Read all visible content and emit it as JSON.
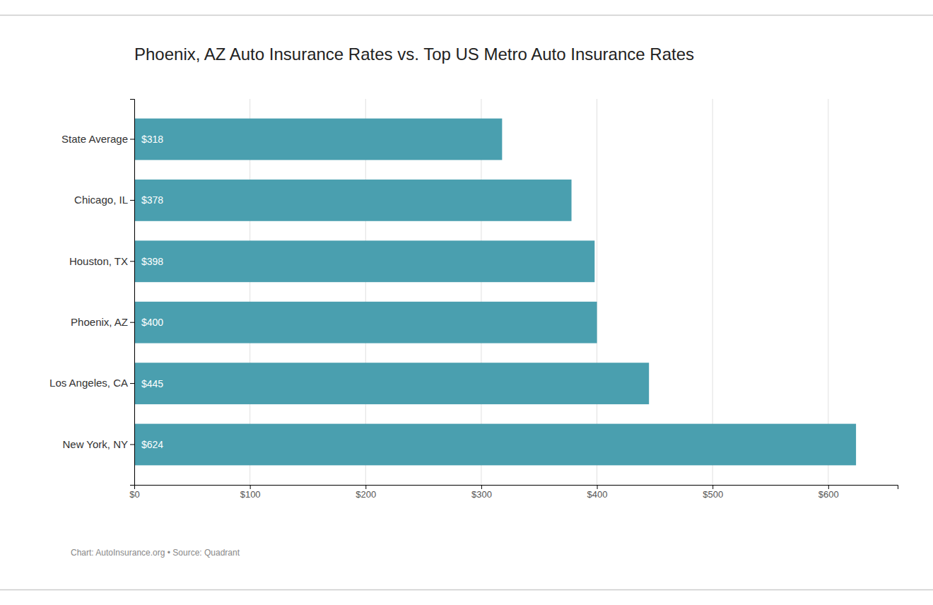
{
  "chart_data": {
    "type": "bar",
    "title": "Phoenix, AZ Auto Insurance Rates vs. Top US Metro Auto Insurance Rates",
    "annotations": [
      "Chart: AutoInsurance.org • Source: Quadrant"
    ],
    "orientation": "horizontal",
    "categories": [
      "State Average",
      "Chicago, IL",
      "Houston, TX",
      "Phoenix, AZ",
      "Los Angeles, CA",
      "New York, NY"
    ],
    "values": [
      318,
      378,
      398,
      400,
      445,
      624
    ],
    "value_labels": [
      "$318",
      "$378",
      "$398",
      "$400",
      "$445",
      "$624"
    ],
    "data_labels": true,
    "color": "#4a9faf",
    "xlim": [
      0,
      660
    ],
    "xticks": [
      {
        "value": 0,
        "label": "$0"
      },
      {
        "value": 100,
        "label": "$100"
      },
      {
        "value": 200,
        "label": "$200"
      },
      {
        "value": 300,
        "label": "$300"
      },
      {
        "value": 400,
        "label": "$400"
      },
      {
        "value": 500,
        "label": "$500"
      },
      {
        "value": 600,
        "label": "$600"
      }
    ],
    "grid": true
  }
}
